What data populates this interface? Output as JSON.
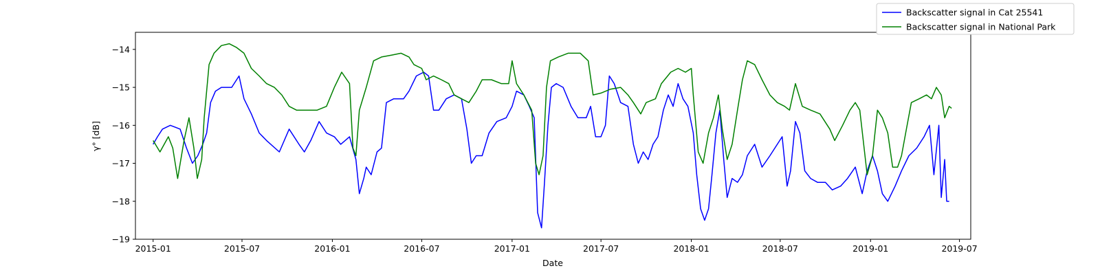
{
  "chart_data": {
    "type": "line",
    "title": "",
    "xlabel": "Date",
    "ylabel": "γ° [dB]",
    "xlim": [
      "2014-11-26",
      "2019-07-24"
    ],
    "ylim": [
      -19,
      -13.55
    ],
    "x_ticks": [
      "2015-01",
      "2015-07",
      "2016-01",
      "2016-07",
      "2017-01",
      "2017-07",
      "2018-01",
      "2018-07",
      "2019-01",
      "2019-07"
    ],
    "y_ticks": [
      -19,
      -18,
      -17,
      -16,
      -15,
      -14
    ],
    "grid": false,
    "legend_position": "top-right",
    "series": [
      {
        "name": "Backscatter signal in Cat 25541",
        "color": "#0000ff",
        "points": [
          [
            "2015-01-01",
            -16.5
          ],
          [
            "2015-01-10",
            -16.3
          ],
          [
            "2015-01-20",
            -16.1
          ],
          [
            "2015-02-05",
            -16.0
          ],
          [
            "2015-02-25",
            -16.1
          ],
          [
            "2015-03-10",
            -16.6
          ],
          [
            "2015-03-22",
            -17.0
          ],
          [
            "2015-04-02",
            -16.8
          ],
          [
            "2015-04-12",
            -16.5
          ],
          [
            "2015-04-20",
            -16.2
          ],
          [
            "2015-04-28",
            -15.4
          ],
          [
            "2015-05-08",
            -15.1
          ],
          [
            "2015-05-20",
            -15.0
          ],
          [
            "2015-06-10",
            -15.0
          ],
          [
            "2015-06-25",
            -14.7
          ],
          [
            "2015-07-05",
            -15.3
          ],
          [
            "2015-07-20",
            -15.7
          ],
          [
            "2015-08-05",
            -16.2
          ],
          [
            "2015-08-20",
            -16.4
          ],
          [
            "2015-09-15",
            -16.7
          ],
          [
            "2015-10-05",
            -16.1
          ],
          [
            "2015-10-25",
            -16.5
          ],
          [
            "2015-11-05",
            -16.7
          ],
          [
            "2015-11-18",
            -16.4
          ],
          [
            "2015-12-05",
            -15.9
          ],
          [
            "2015-12-20",
            -16.2
          ],
          [
            "2016-01-05",
            -16.3
          ],
          [
            "2016-01-18",
            -16.5
          ],
          [
            "2016-02-05",
            -16.3
          ],
          [
            "2016-02-18",
            -16.9
          ],
          [
            "2016-02-25",
            -17.8
          ],
          [
            "2016-03-05",
            -17.4
          ],
          [
            "2016-03-10",
            -17.1
          ],
          [
            "2016-03-20",
            -17.3
          ],
          [
            "2016-04-01",
            -16.7
          ],
          [
            "2016-04-10",
            -16.6
          ],
          [
            "2016-04-20",
            -15.4
          ],
          [
            "2016-05-05",
            -15.3
          ],
          [
            "2016-05-25",
            -15.3
          ],
          [
            "2016-06-05",
            -15.1
          ],
          [
            "2016-06-20",
            -14.7
          ],
          [
            "2016-07-05",
            -14.6
          ],
          [
            "2016-07-15",
            -14.7
          ],
          [
            "2016-07-25",
            -15.6
          ],
          [
            "2016-08-05",
            -15.6
          ],
          [
            "2016-08-20",
            -15.3
          ],
          [
            "2016-09-05",
            -15.2
          ],
          [
            "2016-09-20",
            -15.3
          ],
          [
            "2016-10-01",
            -16.1
          ],
          [
            "2016-10-10",
            -17.0
          ],
          [
            "2016-10-20",
            -16.8
          ],
          [
            "2016-11-01",
            -16.8
          ],
          [
            "2016-11-15",
            -16.2
          ],
          [
            "2016-12-01",
            -15.9
          ],
          [
            "2016-12-20",
            -15.8
          ],
          [
            "2017-01-01",
            -15.5
          ],
          [
            "2017-01-10",
            -15.1
          ],
          [
            "2017-01-25",
            -15.2
          ],
          [
            "2017-02-05",
            -15.5
          ],
          [
            "2017-02-15",
            -15.8
          ],
          [
            "2017-02-22",
            -18.3
          ],
          [
            "2017-03-02",
            -18.7
          ],
          [
            "2017-03-08",
            -17.5
          ],
          [
            "2017-03-15",
            -16.0
          ],
          [
            "2017-03-22",
            -15.0
          ],
          [
            "2017-04-01",
            -14.9
          ],
          [
            "2017-04-15",
            -15.0
          ],
          [
            "2017-05-01",
            -15.5
          ],
          [
            "2017-05-15",
            -15.8
          ],
          [
            "2017-06-01",
            -15.8
          ],
          [
            "2017-06-10",
            -15.5
          ],
          [
            "2017-06-20",
            -16.3
          ],
          [
            "2017-07-01",
            -16.3
          ],
          [
            "2017-07-10",
            -16.0
          ],
          [
            "2017-07-18",
            -14.7
          ],
          [
            "2017-07-28",
            -14.9
          ],
          [
            "2017-08-10",
            -15.4
          ],
          [
            "2017-08-25",
            -15.5
          ],
          [
            "2017-09-05",
            -16.5
          ],
          [
            "2017-09-15",
            -17.0
          ],
          [
            "2017-09-25",
            -16.7
          ],
          [
            "2017-10-05",
            -16.9
          ],
          [
            "2017-10-15",
            -16.5
          ],
          [
            "2017-10-25",
            -16.3
          ],
          [
            "2017-11-05",
            -15.6
          ],
          [
            "2017-11-15",
            -15.2
          ],
          [
            "2017-11-25",
            -15.5
          ],
          [
            "2017-12-05",
            -14.9
          ],
          [
            "2017-12-15",
            -15.3
          ],
          [
            "2017-12-25",
            -15.5
          ],
          [
            "2018-01-05",
            -16.2
          ],
          [
            "2018-01-12",
            -17.3
          ],
          [
            "2018-01-20",
            -18.2
          ],
          [
            "2018-01-28",
            -18.5
          ],
          [
            "2018-02-05",
            -18.2
          ],
          [
            "2018-02-12",
            -17.3
          ],
          [
            "2018-02-20",
            -16.2
          ],
          [
            "2018-02-28",
            -15.6
          ],
          [
            "2018-03-08",
            -16.9
          ],
          [
            "2018-03-15",
            -17.9
          ],
          [
            "2018-03-25",
            -17.4
          ],
          [
            "2018-04-05",
            -17.5
          ],
          [
            "2018-04-15",
            -17.3
          ],
          [
            "2018-04-25",
            -16.8
          ],
          [
            "2018-05-10",
            -16.5
          ],
          [
            "2018-05-25",
            -17.1
          ],
          [
            "2018-06-10",
            -16.8
          ],
          [
            "2018-06-25",
            -16.5
          ],
          [
            "2018-07-05",
            -16.3
          ],
          [
            "2018-07-15",
            -17.6
          ],
          [
            "2018-07-22",
            -17.2
          ],
          [
            "2018-08-01",
            -15.9
          ],
          [
            "2018-08-10",
            -16.2
          ],
          [
            "2018-08-20",
            -17.2
          ],
          [
            "2018-09-01",
            -17.4
          ],
          [
            "2018-09-15",
            -17.5
          ],
          [
            "2018-10-01",
            -17.5
          ],
          [
            "2018-10-15",
            -17.7
          ],
          [
            "2018-11-01",
            -17.6
          ],
          [
            "2018-11-15",
            -17.4
          ],
          [
            "2018-12-01",
            -17.1
          ],
          [
            "2018-12-15",
            -17.8
          ],
          [
            "2018-12-25",
            -17.2
          ],
          [
            "2019-01-05",
            -16.8
          ],
          [
            "2019-01-15",
            -17.2
          ],
          [
            "2019-01-25",
            -17.8
          ],
          [
            "2019-02-05",
            -18.0
          ],
          [
            "2019-02-20",
            -17.6
          ],
          [
            "2019-03-05",
            -17.2
          ],
          [
            "2019-03-20",
            -16.8
          ],
          [
            "2019-04-05",
            -16.6
          ],
          [
            "2019-04-20",
            -16.3
          ],
          [
            "2019-05-01",
            -16.0
          ],
          [
            "2019-05-10",
            -17.3
          ],
          [
            "2019-05-20",
            -16.0
          ],
          [
            "2019-05-25",
            -17.9
          ],
          [
            "2019-06-01",
            -16.9
          ],
          [
            "2019-06-05",
            -18.0
          ],
          [
            "2019-06-10",
            -18.0
          ]
        ]
      },
      {
        "name": "Backscatter signal in National Park",
        "color": "#008000",
        "points": [
          [
            "2015-01-01",
            -16.4
          ],
          [
            "2015-01-15",
            -16.7
          ],
          [
            "2015-02-01",
            -16.3
          ],
          [
            "2015-02-10",
            -16.6
          ],
          [
            "2015-02-20",
            -17.4
          ],
          [
            "2015-03-05",
            -16.4
          ],
          [
            "2015-03-15",
            -15.8
          ],
          [
            "2015-03-25",
            -16.6
          ],
          [
            "2015-04-01",
            -17.4
          ],
          [
            "2015-04-10",
            -16.9
          ],
          [
            "2015-04-15",
            -15.8
          ],
          [
            "2015-04-25",
            -14.4
          ],
          [
            "2015-05-05",
            -14.1
          ],
          [
            "2015-05-20",
            -13.9
          ],
          [
            "2015-06-05",
            -13.85
          ],
          [
            "2015-06-20",
            -13.95
          ],
          [
            "2015-07-05",
            -14.1
          ],
          [
            "2015-07-20",
            -14.5
          ],
          [
            "2015-08-05",
            -14.7
          ],
          [
            "2015-08-20",
            -14.9
          ],
          [
            "2015-09-05",
            -15.0
          ],
          [
            "2015-09-20",
            -15.2
          ],
          [
            "2015-10-05",
            -15.5
          ],
          [
            "2015-10-20",
            -15.6
          ],
          [
            "2015-11-10",
            -15.6
          ],
          [
            "2015-12-01",
            -15.6
          ],
          [
            "2015-12-20",
            -15.5
          ],
          [
            "2016-01-05",
            -15.0
          ],
          [
            "2016-01-20",
            -14.6
          ],
          [
            "2016-02-05",
            -14.9
          ],
          [
            "2016-02-12",
            -16.6
          ],
          [
            "2016-02-18",
            -16.8
          ],
          [
            "2016-02-25",
            -15.6
          ],
          [
            "2016-03-10",
            -15.0
          ],
          [
            "2016-03-25",
            -14.3
          ],
          [
            "2016-04-10",
            -14.2
          ],
          [
            "2016-05-01",
            -14.15
          ],
          [
            "2016-05-20",
            -14.1
          ],
          [
            "2016-06-05",
            -14.2
          ],
          [
            "2016-06-15",
            -14.4
          ],
          [
            "2016-07-01",
            -14.5
          ],
          [
            "2016-07-10",
            -14.8
          ],
          [
            "2016-07-25",
            -14.7
          ],
          [
            "2016-08-10",
            -14.8
          ],
          [
            "2016-08-25",
            -14.9
          ],
          [
            "2016-09-05",
            -15.2
          ],
          [
            "2016-09-20",
            -15.3
          ],
          [
            "2016-10-05",
            -15.4
          ],
          [
            "2016-10-20",
            -15.1
          ],
          [
            "2016-11-01",
            -14.8
          ],
          [
            "2016-11-20",
            -14.8
          ],
          [
            "2016-12-10",
            -14.9
          ],
          [
            "2016-12-25",
            -14.9
          ],
          [
            "2017-01-01",
            -14.3
          ],
          [
            "2017-01-10",
            -14.9
          ],
          [
            "2017-01-25",
            -15.2
          ],
          [
            "2017-02-10",
            -15.6
          ],
          [
            "2017-02-18",
            -17.0
          ],
          [
            "2017-02-25",
            -17.3
          ],
          [
            "2017-03-05",
            -16.8
          ],
          [
            "2017-03-12",
            -15.0
          ],
          [
            "2017-03-20",
            -14.3
          ],
          [
            "2017-04-05",
            -14.2
          ],
          [
            "2017-04-25",
            -14.1
          ],
          [
            "2017-05-20",
            -14.1
          ],
          [
            "2017-06-05",
            -14.3
          ],
          [
            "2017-06-15",
            -15.2
          ],
          [
            "2017-07-01",
            -15.15
          ],
          [
            "2017-07-20",
            -15.05
          ],
          [
            "2017-08-10",
            -15.0
          ],
          [
            "2017-08-25",
            -15.2
          ],
          [
            "2017-09-05",
            -15.4
          ],
          [
            "2017-09-20",
            -15.7
          ],
          [
            "2017-10-01",
            -15.4
          ],
          [
            "2017-10-20",
            -15.3
          ],
          [
            "2017-11-01",
            -14.9
          ],
          [
            "2017-11-20",
            -14.6
          ],
          [
            "2017-12-05",
            -14.5
          ],
          [
            "2017-12-20",
            -14.6
          ],
          [
            "2018-01-01",
            -14.5
          ],
          [
            "2018-01-05",
            -15.2
          ],
          [
            "2018-01-15",
            -16.7
          ],
          [
            "2018-01-25",
            -17.0
          ],
          [
            "2018-02-05",
            -16.2
          ],
          [
            "2018-02-15",
            -15.8
          ],
          [
            "2018-02-25",
            -15.2
          ],
          [
            "2018-03-05",
            -16.1
          ],
          [
            "2018-03-15",
            -16.9
          ],
          [
            "2018-03-25",
            -16.5
          ],
          [
            "2018-04-05",
            -15.6
          ],
          [
            "2018-04-15",
            -14.8
          ],
          [
            "2018-04-25",
            -14.3
          ],
          [
            "2018-05-10",
            -14.4
          ],
          [
            "2018-05-25",
            -14.8
          ],
          [
            "2018-06-10",
            -15.2
          ],
          [
            "2018-06-25",
            -15.4
          ],
          [
            "2018-07-10",
            -15.5
          ],
          [
            "2018-07-20",
            -15.6
          ],
          [
            "2018-08-01",
            -14.9
          ],
          [
            "2018-08-15",
            -15.5
          ],
          [
            "2018-09-01",
            -15.6
          ],
          [
            "2018-09-20",
            -15.7
          ],
          [
            "2018-10-10",
            -16.1
          ],
          [
            "2018-10-20",
            -16.4
          ],
          [
            "2018-11-05",
            -16.0
          ],
          [
            "2018-11-20",
            -15.6
          ],
          [
            "2018-12-01",
            -15.4
          ],
          [
            "2018-12-10",
            -15.6
          ],
          [
            "2018-12-25",
            -17.3
          ],
          [
            "2019-01-05",
            -16.8
          ],
          [
            "2019-01-15",
            -15.6
          ],
          [
            "2019-01-25",
            -15.8
          ],
          [
            "2019-02-05",
            -16.2
          ],
          [
            "2019-02-15",
            -17.1
          ],
          [
            "2019-02-25",
            -17.1
          ],
          [
            "2019-03-05",
            -16.8
          ],
          [
            "2019-03-15",
            -16.1
          ],
          [
            "2019-03-25",
            -15.4
          ],
          [
            "2019-04-10",
            -15.3
          ],
          [
            "2019-04-25",
            -15.2
          ],
          [
            "2019-05-05",
            -15.3
          ],
          [
            "2019-05-15",
            -15.0
          ],
          [
            "2019-05-25",
            -15.2
          ],
          [
            "2019-06-01",
            -15.8
          ],
          [
            "2019-06-10",
            -15.5
          ],
          [
            "2019-06-15",
            -15.55
          ]
        ]
      }
    ]
  }
}
